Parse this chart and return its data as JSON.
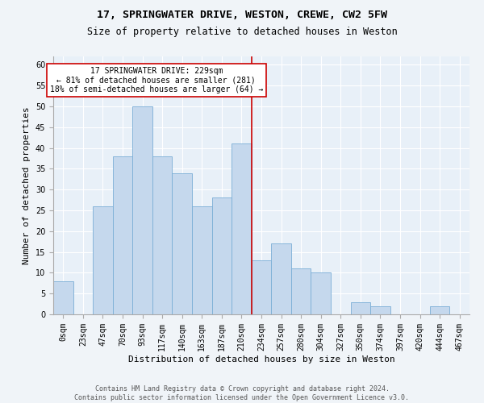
{
  "title1": "17, SPRINGWATER DRIVE, WESTON, CREWE, CW2 5FW",
  "title2": "Size of property relative to detached houses in Weston",
  "xlabel": "Distribution of detached houses by size in Weston",
  "ylabel": "Number of detached properties",
  "categories": [
    "0sqm",
    "23sqm",
    "47sqm",
    "70sqm",
    "93sqm",
    "117sqm",
    "140sqm",
    "163sqm",
    "187sqm",
    "210sqm",
    "234sqm",
    "257sqm",
    "280sqm",
    "304sqm",
    "327sqm",
    "350sqm",
    "374sqm",
    "397sqm",
    "420sqm",
    "444sqm",
    "467sqm"
  ],
  "values": [
    8,
    0,
    26,
    38,
    50,
    38,
    34,
    26,
    28,
    41,
    13,
    17,
    11,
    10,
    0,
    3,
    2,
    0,
    0,
    2,
    0
  ],
  "bar_color": "#c5d8ed",
  "bar_edge_color": "#7aaed6",
  "reference_line_x": 9.5,
  "reference_line_color": "#cc0000",
  "annotation_text": "17 SPRINGWATER DRIVE: 229sqm\n← 81% of detached houses are smaller (281)\n18% of semi-detached houses are larger (64) →",
  "annotation_box_color": "#cc0000",
  "ylim": [
    0,
    62
  ],
  "yticks": [
    0,
    5,
    10,
    15,
    20,
    25,
    30,
    35,
    40,
    45,
    50,
    55,
    60
  ],
  "bg_color": "#e8f0f8",
  "grid_color": "#ffffff",
  "footer_text": "Contains HM Land Registry data © Crown copyright and database right 2024.\nContains public sector information licensed under the Open Government Licence v3.0.",
  "title1_fontsize": 9.5,
  "title2_fontsize": 8.5,
  "xlabel_fontsize": 8,
  "ylabel_fontsize": 8,
  "tick_fontsize": 7,
  "annotation_fontsize": 7,
  "footer_fontsize": 6
}
